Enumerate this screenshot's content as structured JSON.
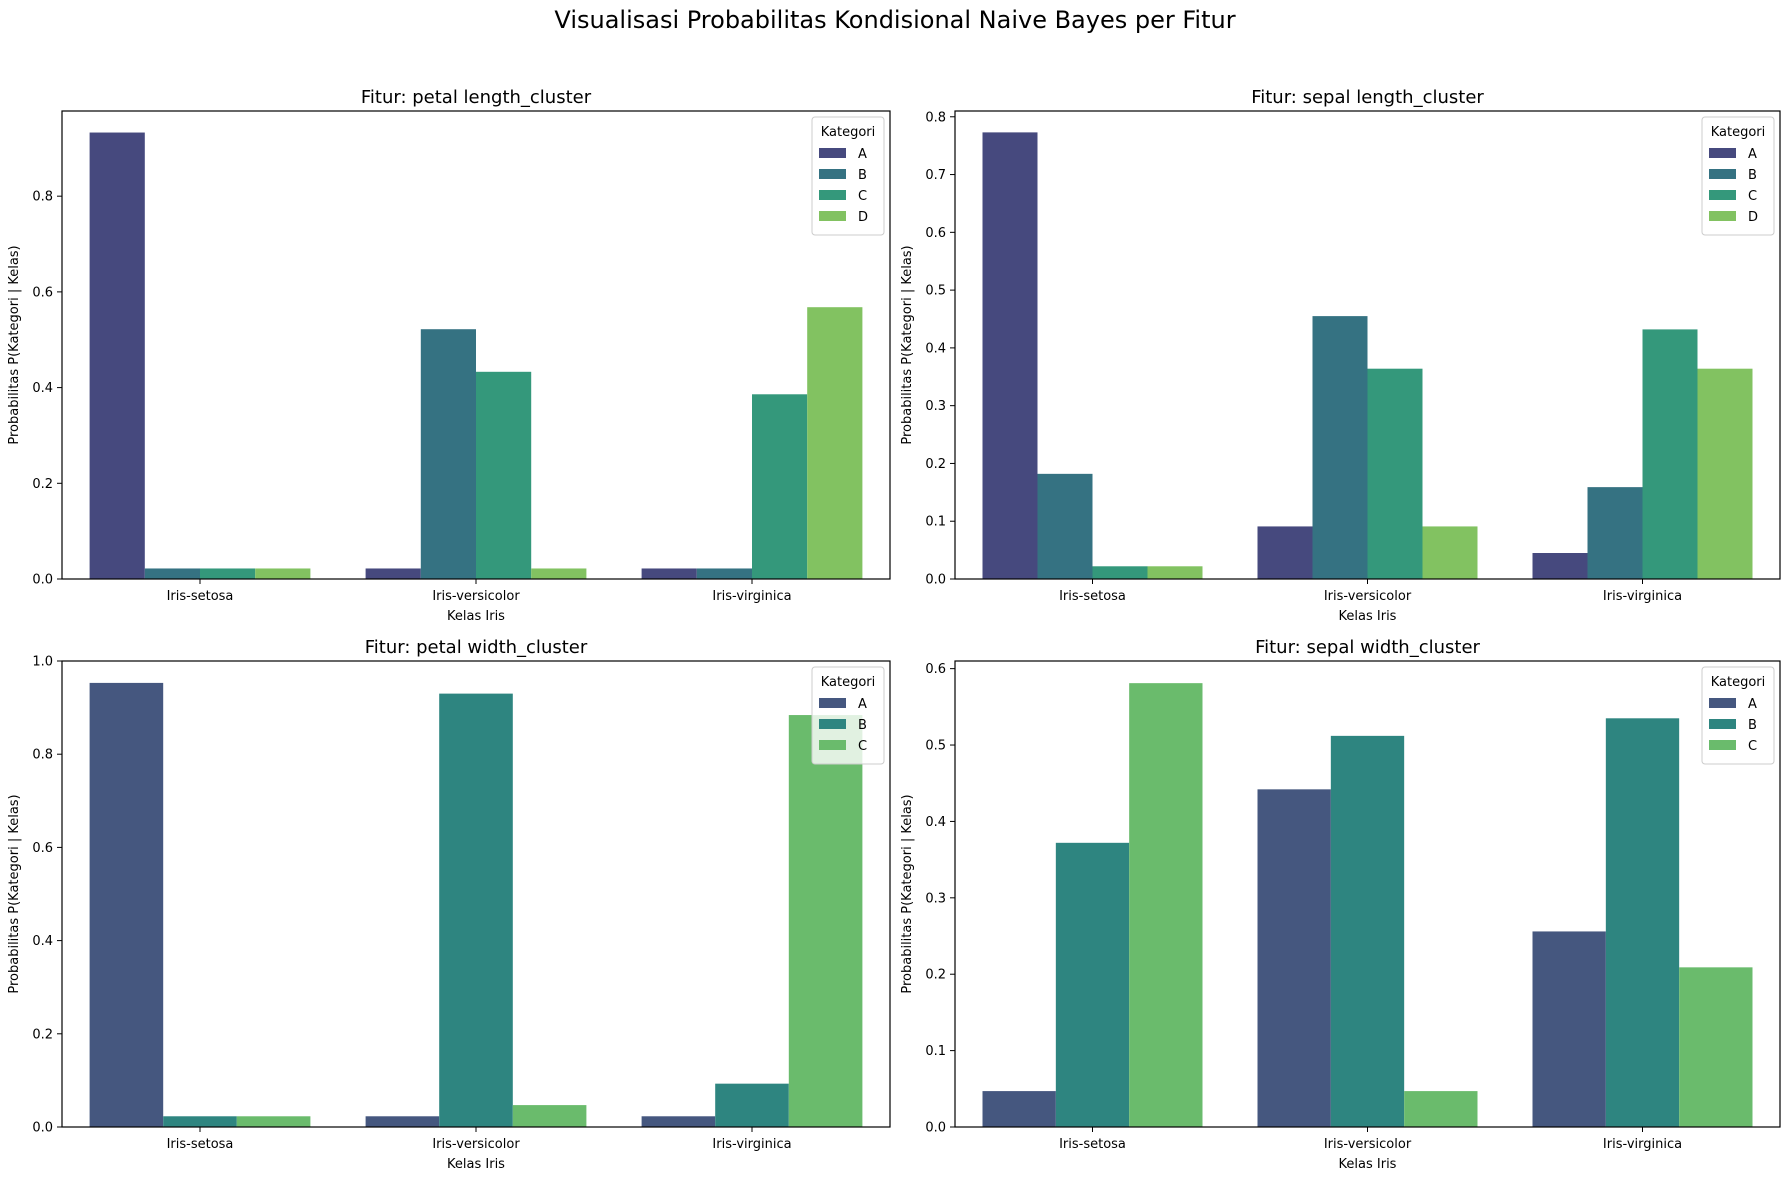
{
  "figure": {
    "suptitle": "Visualisasi Probabilitas Kondisional Naive Bayes per Fitur"
  },
  "chart_data": [
    {
      "type": "bar",
      "title": "Fitur: petal length_cluster",
      "xlabel": "Kelas Iris",
      "ylabel": "Probabilitas P(Kategori | Kelas)",
      "categories": [
        "Iris-setosa",
        "Iris-versicolor",
        "Iris-virginica"
      ],
      "ylim": [
        0,
        0.978
      ],
      "yticks": [
        0.0,
        0.2,
        0.4,
        0.6,
        0.8
      ],
      "ytick_labels": [
        "0.0",
        "0.2",
        "0.4",
        "0.6",
        "0.8"
      ],
      "legend": {
        "title": "Kategori",
        "location": "upper right"
      },
      "series": [
        {
          "name": "A",
          "color": "#46497e",
          "values": [
            0.933,
            0.022,
            0.022
          ]
        },
        {
          "name": "B",
          "color": "#357282",
          "values": [
            0.022,
            0.522,
            0.022
          ]
        },
        {
          "name": "C",
          "color": "#34987b",
          "values": [
            0.022,
            0.433,
            0.386
          ]
        },
        {
          "name": "D",
          "color": "#82c261",
          "values": [
            0.022,
            0.022,
            0.568
          ]
        }
      ]
    },
    {
      "type": "bar",
      "title": "Fitur: sepal length_cluster",
      "xlabel": "Kelas Iris",
      "ylabel": "Probabilitas P(Kategori | Kelas)",
      "categories": [
        "Iris-setosa",
        "Iris-versicolor",
        "Iris-virginica"
      ],
      "ylim": [
        0,
        0.81
      ],
      "yticks": [
        0.0,
        0.1,
        0.2,
        0.3,
        0.4,
        0.5,
        0.6,
        0.7,
        0.8
      ],
      "ytick_labels": [
        "0.0",
        "0.1",
        "0.2",
        "0.3",
        "0.4",
        "0.5",
        "0.6",
        "0.7",
        "0.8"
      ],
      "legend": {
        "title": "Kategori",
        "location": "upper right"
      },
      "series": [
        {
          "name": "A",
          "color": "#46497e",
          "values": [
            0.773,
            0.091,
            0.045
          ]
        },
        {
          "name": "B",
          "color": "#357282",
          "values": [
            0.182,
            0.455,
            0.159
          ]
        },
        {
          "name": "C",
          "color": "#34987b",
          "values": [
            0.022,
            0.364,
            0.432
          ]
        },
        {
          "name": "D",
          "color": "#82c261",
          "values": [
            0.022,
            0.091,
            0.364
          ]
        }
      ]
    },
    {
      "type": "bar",
      "title": "Fitur: petal width_cluster",
      "xlabel": "Kelas Iris",
      "ylabel": "Probabilitas P(Kategori | Kelas)",
      "categories": [
        "Iris-setosa",
        "Iris-versicolor",
        "Iris-virginica"
      ],
      "ylim": [
        0,
        1.0
      ],
      "yticks": [
        0.0,
        0.2,
        0.4,
        0.6,
        0.8,
        1.0
      ],
      "ytick_labels": [
        "0.0",
        "0.2",
        "0.4",
        "0.6",
        "0.8",
        "1.0"
      ],
      "legend": {
        "title": "Kategori",
        "location": "upper right"
      },
      "series": [
        {
          "name": "A",
          "color": "#45577f",
          "values": [
            0.953,
            0.023,
            0.023
          ]
        },
        {
          "name": "B",
          "color": "#2e8580",
          "values": [
            0.023,
            0.93,
            0.093
          ]
        },
        {
          "name": "C",
          "color": "#6abb6c",
          "values": [
            0.023,
            0.047,
            0.884
          ]
        }
      ]
    },
    {
      "type": "bar",
      "title": "Fitur: sepal width_cluster",
      "xlabel": "Kelas Iris",
      "ylabel": "Probabilitas P(Kategori | Kelas)",
      "categories": [
        "Iris-setosa",
        "Iris-versicolor",
        "Iris-virginica"
      ],
      "ylim": [
        0,
        0.61
      ],
      "yticks": [
        0.0,
        0.1,
        0.2,
        0.3,
        0.4,
        0.5,
        0.6
      ],
      "ytick_labels": [
        "0.0",
        "0.1",
        "0.2",
        "0.3",
        "0.4",
        "0.5",
        "0.6"
      ],
      "legend": {
        "title": "Kategori",
        "location": "upper right"
      },
      "series": [
        {
          "name": "A",
          "color": "#45577f",
          "values": [
            0.047,
            0.442,
            0.256
          ]
        },
        {
          "name": "B",
          "color": "#2e8580",
          "values": [
            0.372,
            0.512,
            0.535
          ]
        },
        {
          "name": "C",
          "color": "#6abb6c",
          "values": [
            0.581,
            0.047,
            0.209
          ]
        }
      ]
    }
  ]
}
